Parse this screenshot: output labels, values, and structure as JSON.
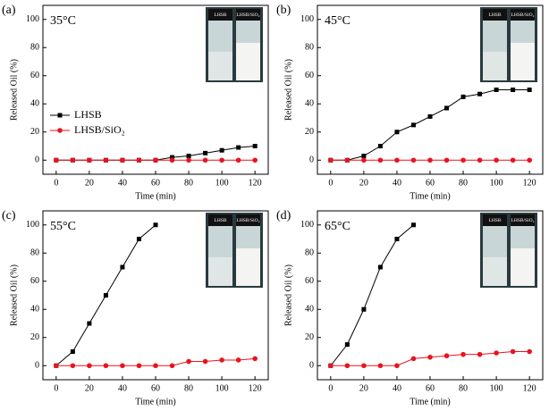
{
  "chart_data": [
    {
      "type": "line",
      "panel_label": "(a)",
      "annotation": "35°C",
      "xlabel": "Time (min)",
      "ylabel": "Released Oil (%)",
      "xlim": [
        -8,
        128
      ],
      "xticks": [
        0,
        20,
        40,
        60,
        80,
        100,
        120
      ],
      "ylim": [
        -10,
        110
      ],
      "yticks": [
        0,
        20,
        40,
        60,
        80,
        100
      ],
      "legend": true,
      "photo_labels": [
        "LHSB",
        "LHSB/SiO₂"
      ],
      "series": [
        {
          "name": "LHSB",
          "color": "#000000",
          "marker": "square",
          "x": [
            0,
            10,
            20,
            30,
            40,
            50,
            60,
            70,
            80,
            90,
            100,
            110,
            120
          ],
          "values": [
            0,
            0,
            0,
            0,
            0,
            0,
            0,
            2,
            3,
            5,
            7,
            9,
            10
          ]
        },
        {
          "name": "LHSB/SiO₂",
          "color": "#e8141e",
          "marker": "circle",
          "x": [
            0,
            10,
            20,
            30,
            40,
            50,
            60,
            70,
            80,
            90,
            100,
            110,
            120
          ],
          "values": [
            0,
            0,
            0,
            0,
            0,
            0,
            0,
            0,
            0,
            0,
            0,
            0,
            0
          ]
        }
      ]
    },
    {
      "type": "line",
      "panel_label": "(b)",
      "annotation": "45°C",
      "xlabel": "Time (min)",
      "ylabel": "Released Oil (%)",
      "xlim": [
        -8,
        128
      ],
      "xticks": [
        0,
        20,
        40,
        60,
        80,
        100,
        120
      ],
      "ylim": [
        -10,
        110
      ],
      "yticks": [
        0,
        20,
        40,
        60,
        80,
        100
      ],
      "legend": false,
      "photo_labels": [
        "LHSB",
        "LHSB/SiO₂"
      ],
      "series": [
        {
          "name": "LHSB",
          "color": "#000000",
          "marker": "square",
          "x": [
            0,
            10,
            20,
            30,
            40,
            50,
            60,
            70,
            80,
            90,
            100,
            110,
            120
          ],
          "values": [
            0,
            0,
            3,
            10,
            20,
            25,
            31,
            37,
            45,
            47,
            50,
            50,
            50
          ]
        },
        {
          "name": "LHSB/SiO₂",
          "color": "#e8141e",
          "marker": "circle",
          "x": [
            0,
            10,
            20,
            30,
            40,
            50,
            60,
            70,
            80,
            90,
            100,
            110,
            120
          ],
          "values": [
            0,
            0,
            0,
            0,
            0,
            0,
            0,
            0,
            0,
            0,
            0,
            0,
            0
          ]
        }
      ]
    },
    {
      "type": "line",
      "panel_label": "(c)",
      "annotation": "55°C",
      "xlabel": "Time (min)",
      "ylabel": "Released Oil (%)",
      "xlim": [
        -8,
        128
      ],
      "xticks": [
        0,
        20,
        40,
        60,
        80,
        100,
        120
      ],
      "ylim": [
        -10,
        110
      ],
      "yticks": [
        0,
        20,
        40,
        60,
        80,
        100
      ],
      "legend": false,
      "photo_labels": [
        "LHSB",
        "LHSB/SiO₂"
      ],
      "series": [
        {
          "name": "LHSB",
          "color": "#000000",
          "marker": "square",
          "x": [
            0,
            10,
            20,
            30,
            40,
            50,
            60
          ],
          "values": [
            0,
            10,
            30,
            50,
            70,
            90,
            100
          ]
        },
        {
          "name": "LHSB/SiO₂",
          "color": "#e8141e",
          "marker": "circle",
          "x": [
            0,
            10,
            20,
            30,
            40,
            50,
            60,
            70,
            80,
            90,
            100,
            110,
            120
          ],
          "values": [
            0,
            0,
            0,
            0,
            0,
            0,
            0,
            0,
            3,
            3,
            4,
            4,
            5
          ]
        }
      ]
    },
    {
      "type": "line",
      "panel_label": "(d)",
      "annotation": "65°C",
      "xlabel": "Time (min)",
      "ylabel": "Released Oil (%)",
      "xlim": [
        -8,
        128
      ],
      "xticks": [
        0,
        20,
        40,
        60,
        80,
        100,
        120
      ],
      "ylim": [
        -10,
        110
      ],
      "yticks": [
        0,
        20,
        40,
        60,
        80,
        100
      ],
      "legend": false,
      "photo_labels": [
        "LHSB",
        "LHSB/SiO₂"
      ],
      "series": [
        {
          "name": "LHSB",
          "color": "#000000",
          "marker": "square",
          "x": [
            0,
            10,
            20,
            30,
            40,
            50
          ],
          "values": [
            0,
            15,
            40,
            70,
            90,
            100
          ]
        },
        {
          "name": "LHSB/SiO₂",
          "color": "#e8141e",
          "marker": "circle",
          "x": [
            0,
            10,
            20,
            30,
            40,
            50,
            60,
            70,
            80,
            90,
            100,
            110,
            120
          ],
          "values": [
            0,
            0,
            0,
            0,
            0,
            5,
            6,
            7,
            8,
            8,
            9,
            10,
            10
          ]
        }
      ]
    }
  ]
}
